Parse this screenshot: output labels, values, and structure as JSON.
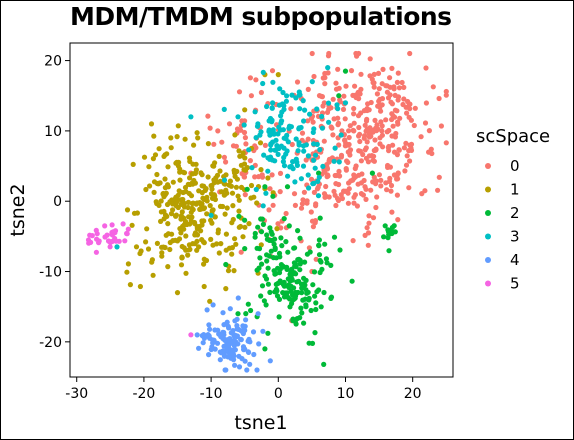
{
  "chart_data": {
    "type": "scatter",
    "title": "MDM/TMDM subpopulations",
    "xlabel": "tsne1",
    "ylabel": "tsne2",
    "xlim": [
      -31,
      26
    ],
    "ylim": [
      -25,
      22.5
    ],
    "xticks": [
      -30,
      -20,
      -10,
      0,
      10,
      20
    ],
    "yticks": [
      -20,
      -10,
      0,
      10,
      20
    ],
    "xtick_labels": [
      "-30",
      "-20",
      "-10",
      "0",
      "10",
      "20"
    ],
    "ytick_labels": [
      "-20",
      "-10",
      "0",
      "10",
      "20"
    ],
    "grid": false,
    "legend": {
      "title": "scSpace",
      "placement": "right"
    },
    "series": [
      {
        "name": "0",
        "color": "#F8766D",
        "clusters": [
          {
            "cx": 11,
            "cy": 8,
            "sx": 5.5,
            "sy": 5.5,
            "n": 330
          },
          {
            "cx": 16,
            "cy": 14,
            "sx": 3.5,
            "sy": 3.0,
            "n": 60
          },
          {
            "cx": -5,
            "cy": 8,
            "sx": 3.0,
            "sy": 4.0,
            "n": 40
          },
          {
            "cx": 3,
            "cy": -1,
            "sx": 4.0,
            "sy": 3.0,
            "n": 40
          }
        ],
        "extra_points": [
          [
            -9,
            10
          ],
          [
            -4,
            15
          ],
          [
            5,
            -10
          ],
          [
            2,
            -17
          ],
          [
            -13,
            4
          ]
        ]
      },
      {
        "name": "1",
        "color": "#B79F00",
        "clusters": [
          {
            "cx": -13,
            "cy": -1,
            "sx": 4.2,
            "sy": 4.6,
            "n": 300
          },
          {
            "cx": -6,
            "cy": 3,
            "sx": 2.5,
            "sy": 3.0,
            "n": 30
          }
        ],
        "extra_points": [
          [
            -16,
            9
          ],
          [
            -12,
            9
          ],
          [
            -18,
            -6
          ],
          [
            -15,
            -13
          ],
          [
            0,
            18
          ],
          [
            -2,
            18
          ],
          [
            -5,
            13
          ]
        ]
      },
      {
        "name": "2",
        "color": "#00BA38",
        "clusters": [
          {
            "cx": 2,
            "cy": -11,
            "sx": 2.8,
            "sy": 4.2,
            "n": 170
          },
          {
            "cx": -3,
            "cy": -5,
            "sx": 2.0,
            "sy": 2.5,
            "n": 25
          },
          {
            "cx": 16.7,
            "cy": -5,
            "sx": 0.5,
            "sy": 1.0,
            "n": 14
          }
        ],
        "extra_points": [
          [
            10,
            18.5
          ],
          [
            9,
            15
          ],
          [
            -2,
            -21
          ],
          [
            -6,
            -16
          ],
          [
            6,
            4
          ],
          [
            14,
            4
          ]
        ]
      },
      {
        "name": "3",
        "color": "#00BFC4",
        "clusters": [
          {
            "cx": 2,
            "cy": 9,
            "sx": 3.2,
            "sy": 3.8,
            "n": 140
          }
        ],
        "extra_points": [
          [
            -24,
            -6.5
          ],
          [
            -13,
            12
          ],
          [
            -10,
            -2
          ],
          [
            -6,
            12
          ],
          [
            10,
            14
          ],
          [
            -8,
            3
          ]
        ]
      },
      {
        "name": "4",
        "color": "#619CFF",
        "clusters": [
          {
            "cx": -7,
            "cy": -20,
            "sx": 2.2,
            "sy": 2.2,
            "n": 120
          }
        ],
        "extra_points": [
          [
            -11,
            -19.5
          ],
          [
            -3,
            -16
          ]
        ]
      },
      {
        "name": "5",
        "color": "#F564E3",
        "clusters": [
          {
            "cx": -25.5,
            "cy": -5,
            "sx": 1.6,
            "sy": 1.0,
            "n": 34
          }
        ],
        "extra_points": [
          [
            -13,
            -19
          ]
        ]
      }
    ]
  }
}
